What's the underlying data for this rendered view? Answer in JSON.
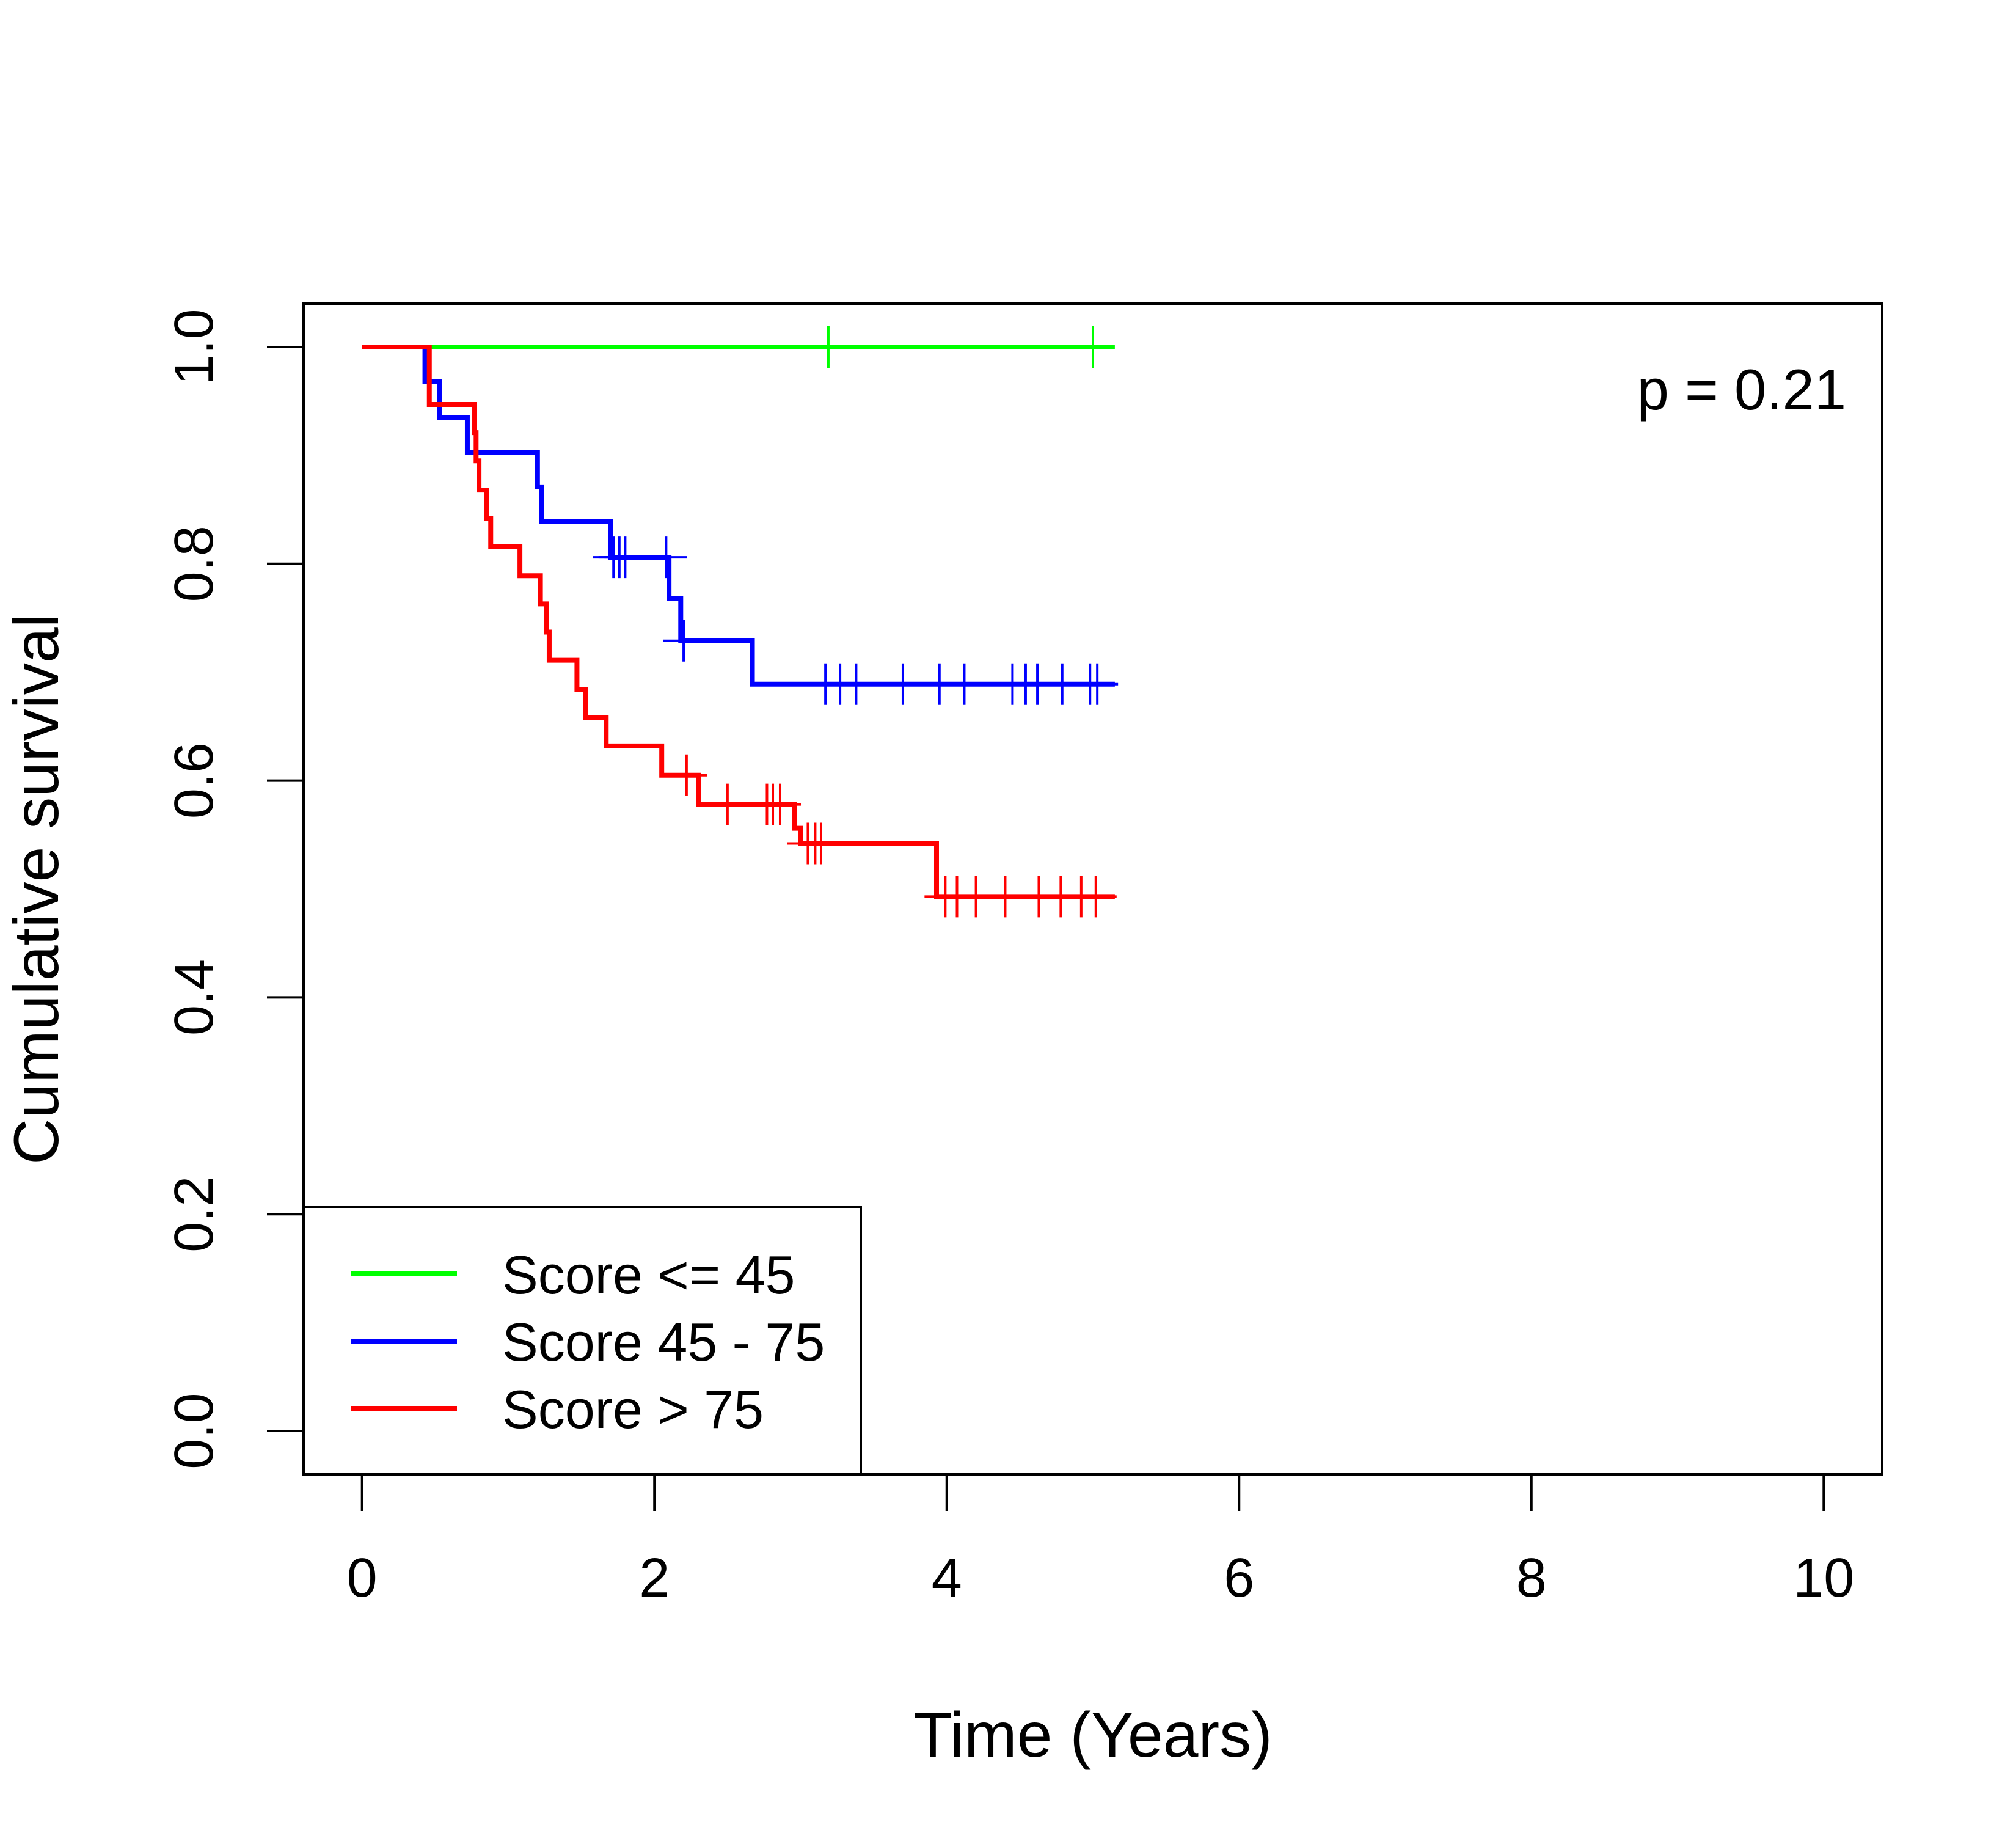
{
  "chart_data": {
    "type": "line",
    "subtype": "kaplan-meier",
    "title": "",
    "xlabel": "Time (Years)",
    "ylabel": "Cumulative survival",
    "xlim": [
      -0.4,
      10.4
    ],
    "ylim": [
      -0.04,
      1.04
    ],
    "xticks": [
      0,
      2,
      4,
      6,
      8,
      10
    ],
    "xtick_labels": [
      "0",
      "2",
      "4",
      "6",
      "8",
      "10"
    ],
    "yticks": [
      0.0,
      0.2,
      0.4,
      0.6,
      0.8,
      1.0
    ],
    "ytick_labels": [
      "0.0",
      "0.2",
      "0.4",
      "0.6",
      "0.8",
      "1.0"
    ],
    "grid": false,
    "legend_position": "bottom-left",
    "annotation": "p = 0.21",
    "series": [
      {
        "name": "Score <= 45",
        "color": "#00ff00",
        "steps": [
          [
            0,
            1.0
          ],
          [
            5.15,
            1.0
          ]
        ],
        "censor": [
          [
            3.19,
            1.0
          ],
          [
            5.0,
            1.0
          ]
        ]
      },
      {
        "name": "Score 45 - 75",
        "color": "#0000ff",
        "steps": [
          [
            0,
            1.0
          ],
          [
            0.43,
            0.968
          ],
          [
            0.53,
            0.935
          ],
          [
            0.72,
            0.903
          ],
          [
            1.2,
            0.871
          ],
          [
            1.23,
            0.839
          ],
          [
            1.7,
            0.806
          ],
          [
            2.1,
            0.768
          ],
          [
            2.18,
            0.729
          ],
          [
            2.67,
            0.689
          ],
          [
            5.15,
            0.689
          ]
        ],
        "censor": [
          [
            1.72,
            0.806
          ],
          [
            1.76,
            0.806
          ],
          [
            1.8,
            0.806
          ],
          [
            2.08,
            0.806
          ],
          [
            2.2,
            0.729
          ],
          [
            3.17,
            0.689
          ],
          [
            3.27,
            0.689
          ],
          [
            3.38,
            0.689
          ],
          [
            3.7,
            0.689
          ],
          [
            3.95,
            0.689
          ],
          [
            4.12,
            0.689
          ],
          [
            4.45,
            0.689
          ],
          [
            4.54,
            0.689
          ],
          [
            4.62,
            0.689
          ],
          [
            4.79,
            0.689
          ],
          [
            4.98,
            0.689
          ],
          [
            5.03,
            0.689
          ]
        ]
      },
      {
        "name": "Score > 75",
        "color": "#ff0000",
        "steps": [
          [
            0,
            1.0
          ],
          [
            0.46,
            0.947
          ],
          [
            0.77,
            0.921
          ],
          [
            0.78,
            0.895
          ],
          [
            0.8,
            0.868
          ],
          [
            0.85,
            0.842
          ],
          [
            0.88,
            0.816
          ],
          [
            1.08,
            0.789
          ],
          [
            1.22,
            0.763
          ],
          [
            1.26,
            0.737
          ],
          [
            1.28,
            0.711
          ],
          [
            1.47,
            0.684
          ],
          [
            1.53,
            0.658
          ],
          [
            1.67,
            0.632
          ],
          [
            2.05,
            0.605
          ],
          [
            2.3,
            0.578
          ],
          [
            2.96,
            0.556
          ],
          [
            3.0,
            0.542
          ],
          [
            3.93,
            0.493
          ],
          [
            5.15,
            0.493
          ]
        ],
        "censor": [
          [
            2.22,
            0.605
          ],
          [
            2.5,
            0.578
          ],
          [
            2.77,
            0.578
          ],
          [
            2.81,
            0.578
          ],
          [
            2.86,
            0.578
          ],
          [
            3.05,
            0.542
          ],
          [
            3.1,
            0.542
          ],
          [
            3.14,
            0.542
          ],
          [
            3.99,
            0.493
          ],
          [
            4.07,
            0.493
          ],
          [
            4.2,
            0.493
          ],
          [
            4.4,
            0.493
          ],
          [
            4.63,
            0.493
          ],
          [
            4.78,
            0.493
          ],
          [
            4.92,
            0.493
          ],
          [
            5.02,
            0.493
          ]
        ]
      }
    ]
  }
}
